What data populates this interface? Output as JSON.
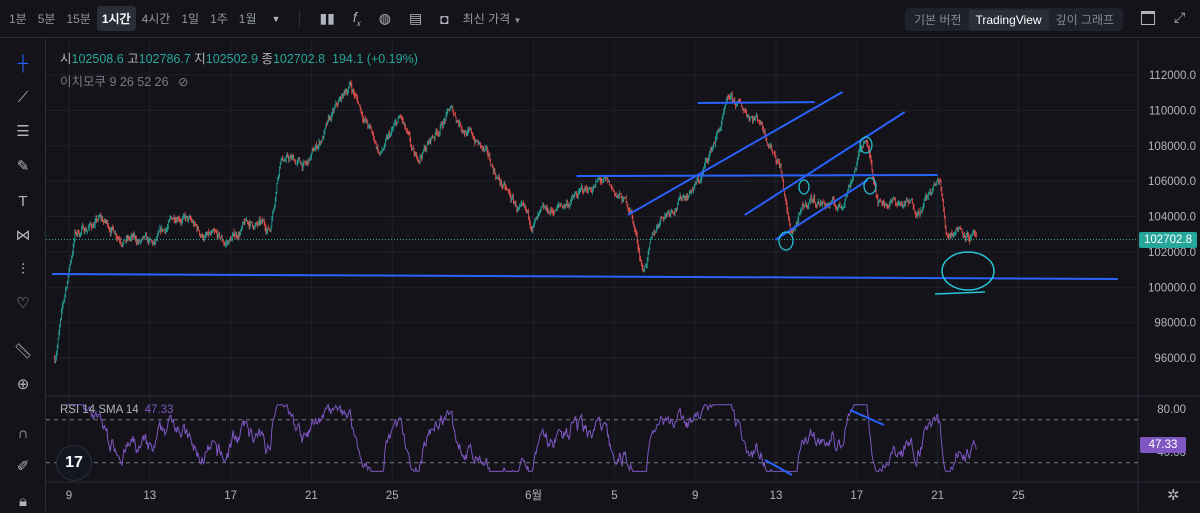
{
  "toolbar": {
    "timeframes": [
      "1분",
      "5분",
      "15분",
      "1시간",
      "4시간",
      "1일",
      "1주",
      "1월"
    ],
    "active_timeframe": "1시간",
    "price_type": "최신 가격",
    "versions": [
      "기본 버전",
      "TradingView",
      "깊이 그래프"
    ],
    "active_version": "TradingView",
    "icons": [
      "chevron-down-icon",
      "candles-icon",
      "fx-icon",
      "indicator-template-icon",
      "layout-icon",
      "camera-icon",
      "window-icon",
      "fullscreen-icon"
    ]
  },
  "legend": {
    "open_label": "시",
    "open": "102508.6",
    "high_label": "고",
    "high": "102786.7",
    "low_label": "지",
    "low": "102502.9",
    "close_label": "종",
    "close": "102702.8",
    "change": "194.1 (+0.19%)",
    "indicator": "이치모쿠 9 26 52 26"
  },
  "rsi": {
    "label": "RSI 14 SMA 14",
    "value": "47.33",
    "color": "#7e57c2"
  },
  "left_tools": [
    "crosshair-icon",
    "trendline-icon",
    "fib-icon",
    "brush-icon",
    "text-icon",
    "pattern-icon",
    "measure-icon",
    "heart-icon",
    "ruler-icon",
    "zoom-in-icon",
    "magnet-icon",
    "lock-drawings-icon",
    "lock-icon"
  ],
  "colors": {
    "up": "#26a69a",
    "down": "#ef5350",
    "drawing": "#2962ff",
    "drawing_cyan": "#26c6da"
  },
  "chart_data": {
    "type": "candlestick",
    "interval": "1h",
    "last_price": "102702.8",
    "ylim": [
      95000,
      113000
    ],
    "y_ticks": [
      "112000.0",
      "110000.0",
      "108000.0",
      "106000.0",
      "104000.0",
      "102000.0",
      "100000.0",
      "98000.0",
      "96000.0"
    ],
    "x_ticks": [
      "9",
      "13",
      "17",
      "21",
      "25",
      "6월",
      "5",
      "9",
      "13",
      "17",
      "21",
      "25"
    ],
    "x_tick_dates": [
      "5/9",
      "5/13",
      "5/17",
      "5/21",
      "5/25",
      "6/1",
      "6/5",
      "6/9",
      "6/13",
      "6/17",
      "6/21",
      "6/25"
    ],
    "price_path": [
      [
        "5/8 07",
        96000
      ],
      [
        "5/9 07",
        103000
      ],
      [
        "5/10 12",
        103800
      ],
      [
        "5/11 20",
        102800
      ],
      [
        "5/13 05",
        102200
      ],
      [
        "5/14 10",
        104300
      ],
      [
        "5/15 12",
        103000
      ],
      [
        "5/16 18",
        102400
      ],
      [
        "5/17 20",
        103600
      ],
      [
        "5/18 23",
        103300
      ],
      [
        "5/19 11",
        107500
      ],
      [
        "5/20 18",
        106800
      ],
      [
        "5/22 22",
        111500
      ],
      [
        "5/24 10",
        107500
      ],
      [
        "5/25 10",
        109500
      ],
      [
        "5/26 03",
        107000
      ],
      [
        "5/27 21",
        110000
      ],
      [
        "5/29 08",
        108000
      ],
      [
        "5/30 20",
        105000
      ],
      [
        "5/31 20",
        103500
      ],
      [
        "6/2 07",
        104500
      ],
      [
        "6/4 07",
        106000
      ],
      [
        "6/5 19",
        104500
      ],
      [
        "6/6 10",
        101000
      ],
      [
        "6/7 07",
        104000
      ],
      [
        "6/9 05",
        106000
      ],
      [
        "6/10 17",
        110500
      ],
      [
        "6/12 05",
        109500
      ],
      [
        "6/13 05",
        107000
      ],
      [
        "6/13 17",
        103000
      ],
      [
        "6/14 17",
        105000
      ],
      [
        "6/16 05",
        104500
      ],
      [
        "6/17 10",
        108500
      ],
      [
        "6/18 02",
        105000
      ],
      [
        "6/20 02",
        104500
      ],
      [
        "6/21 03",
        106000
      ],
      [
        "6/21 10",
        103000
      ],
      [
        "6/22 02",
        103500
      ],
      [
        "6/22 22",
        102700
      ]
    ],
    "drawings": [
      {
        "type": "line",
        "from": [
          "5/8 04",
          100750
        ],
        "to": [
          "6/29 22",
          100470
        ]
      },
      {
        "type": "line",
        "from": [
          "6/9 03",
          110420
        ],
        "to": [
          "6/14 22",
          110470
        ]
      },
      {
        "type": "line",
        "from": [
          "6/3 03",
          106290
        ],
        "to": [
          "6/21 00",
          106350
        ]
      },
      {
        "type": "line",
        "from": [
          "6/5 16",
          104090
        ],
        "to": [
          "6/16 07",
          111040
        ]
      },
      {
        "type": "line",
        "from": [
          "6/11 11",
          104090
        ],
        "to": [
          "6/19 09",
          109910
        ]
      },
      {
        "type": "line",
        "from": [
          "6/12 23",
          102670
        ],
        "to": [
          "6/17 13",
          106060
        ]
      }
    ],
    "rsi_levels": [
      70,
      30
    ],
    "rsi_ticks": [
      "80.00",
      "40.00"
    ],
    "rsi_ylim": [
      20,
      85
    ]
  }
}
